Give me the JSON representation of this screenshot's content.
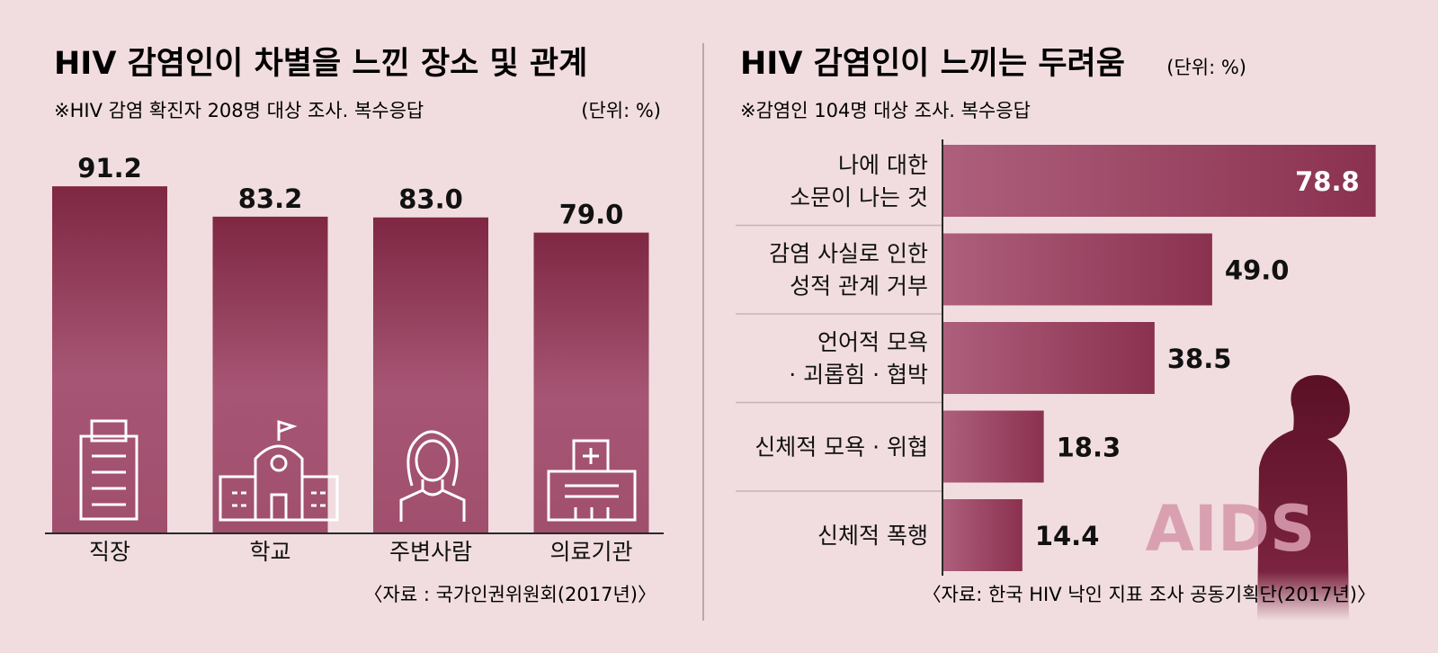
{
  "colors": {
    "background": "#f1dde0",
    "bar_dark": "#8a2f4a",
    "bar_light": "#b0607a",
    "figure_dark": "#6e1a33",
    "aids_text": "#d79aae"
  },
  "icons": [
    "building-icon",
    "school-icon",
    "woman-icon",
    "hospital-icon",
    "person-silhouette-icon"
  ],
  "chart_data": [
    {
      "type": "bar",
      "title": "HIV 감염인이 차별을 느낀 장소 및 관계",
      "subtitle": "※HIV 감염 확진자 208명 대상 조사. 복수응답",
      "unit": "(단위: %)",
      "categories": [
        "직장",
        "학교",
        "주변사람",
        "의료기관"
      ],
      "values": [
        91.2,
        83.2,
        83.0,
        79.0
      ],
      "value_labels": [
        "91.2",
        "83.2",
        "83.0",
        "79.0"
      ],
      "source": "〈자료 : 국가인권위원회(2017년)〉"
    },
    {
      "type": "bar",
      "orientation": "horizontal",
      "title": "HIV 감염인이 느끼는 두려움",
      "unit": "(단위: %)",
      "subtitle": "※감염인 104명 대상 조사. 복수응답",
      "categories": [
        [
          "나에 대한",
          "소문이 나는 것"
        ],
        [
          "감염 사실로 인한",
          "성적 관계 거부"
        ],
        [
          "언어적 모욕",
          "· 괴롭힘 · 협박"
        ],
        [
          "신체적 모욕 · 위협"
        ],
        [
          "신체적 폭행"
        ]
      ],
      "values": [
        78.8,
        49.0,
        38.5,
        18.3,
        14.4
      ],
      "value_labels": [
        "78.8",
        "49.0",
        "38.5",
        "18.3",
        "14.4"
      ],
      "watermark": "AIDS",
      "source": "〈자료: 한국 HIV 낙인 지표 조사 공동기획단(2017년)〉"
    }
  ]
}
